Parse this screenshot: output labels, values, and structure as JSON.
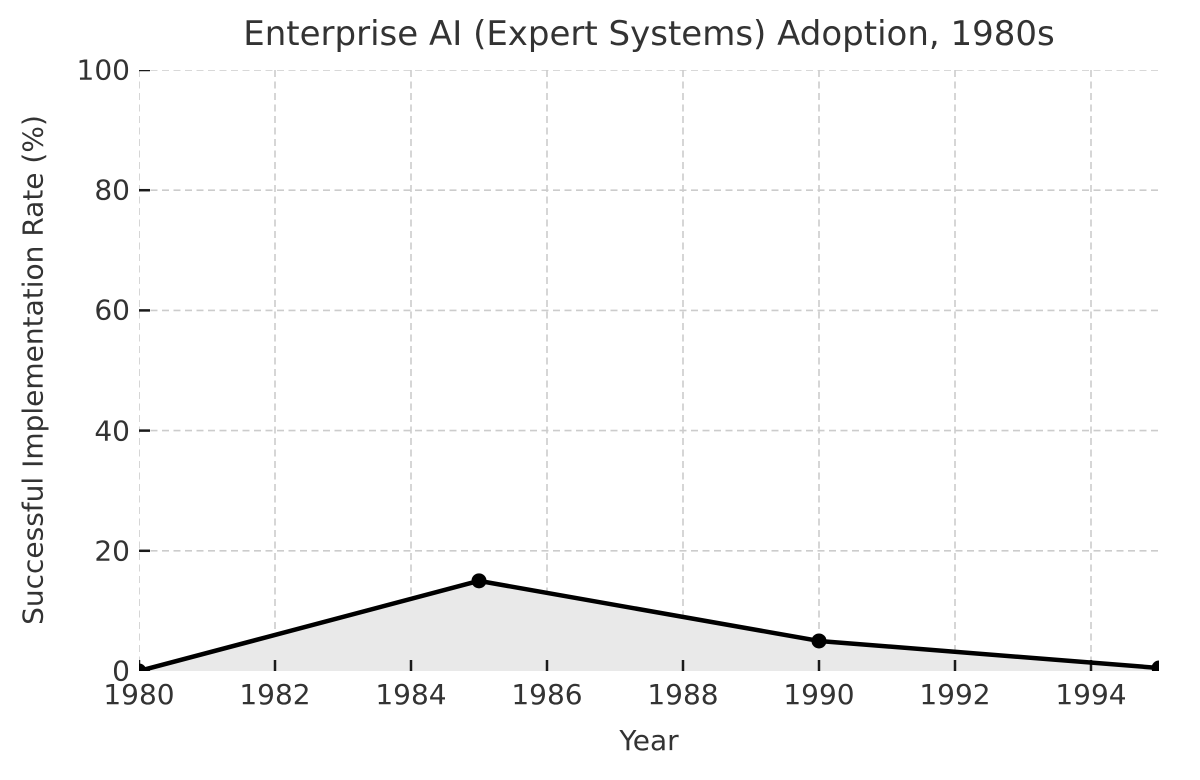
{
  "chart_data": {
    "type": "area",
    "title": "Enterprise AI (Expert Systems) Adoption, 1980s",
    "xlabel": "Year",
    "ylabel": "Successful Implementation Rate (%)",
    "x": [
      1980,
      1985,
      1990,
      1995
    ],
    "values": [
      0,
      15,
      5,
      0.5
    ],
    "series_name": "Successful Implementation Rate (%)",
    "xlim": [
      1980,
      1995
    ],
    "ylim": [
      0,
      100
    ],
    "x_ticks": [
      1980,
      1982,
      1984,
      1986,
      1988,
      1990,
      1992,
      1994
    ],
    "y_ticks": [
      0,
      20,
      40,
      60,
      80,
      100
    ],
    "grid": "dashed",
    "legend_position": "none",
    "marker": "circle",
    "colors": {
      "line": "#000000",
      "marker": "#000000",
      "fill": "#e9e9e9",
      "grid": "#cccccc",
      "tick": "#1a1a1a",
      "text": "#333333",
      "background": "#ffffff"
    }
  }
}
